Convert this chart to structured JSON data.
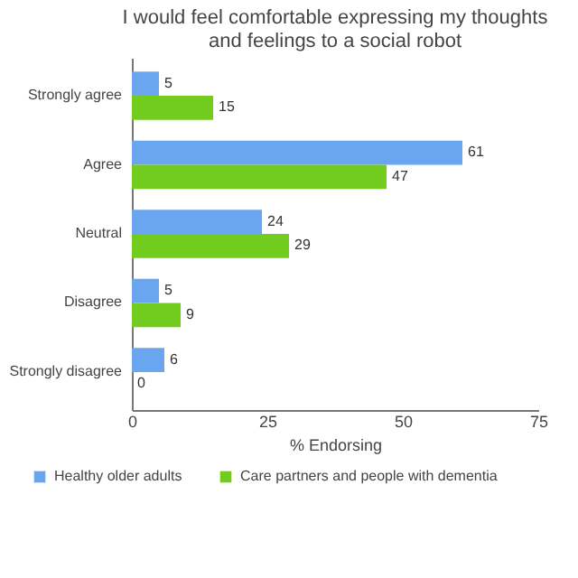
{
  "chart_data": {
    "type": "bar",
    "orientation": "horizontal",
    "title": "I would feel comfortable expressing my thoughts and feelings to a social robot",
    "xlabel": "% Endorsing",
    "categories": [
      "Strongly agree",
      "Agree",
      "Neutral",
      "Disagree",
      "Strongly disagree"
    ],
    "series": [
      {
        "name": "Healthy older adults",
        "color": "#6aa5f0",
        "values": [
          5,
          61,
          24,
          5,
          6
        ]
      },
      {
        "name": "Care partners and people with dementia",
        "color": "#72cc1e",
        "values": [
          15,
          47,
          29,
          9,
          0
        ]
      }
    ],
    "xlim": [
      0,
      75
    ],
    "xticks": [
      0,
      25,
      50,
      75
    ],
    "grid": false,
    "legend": "bottom",
    "data_labels": true
  }
}
